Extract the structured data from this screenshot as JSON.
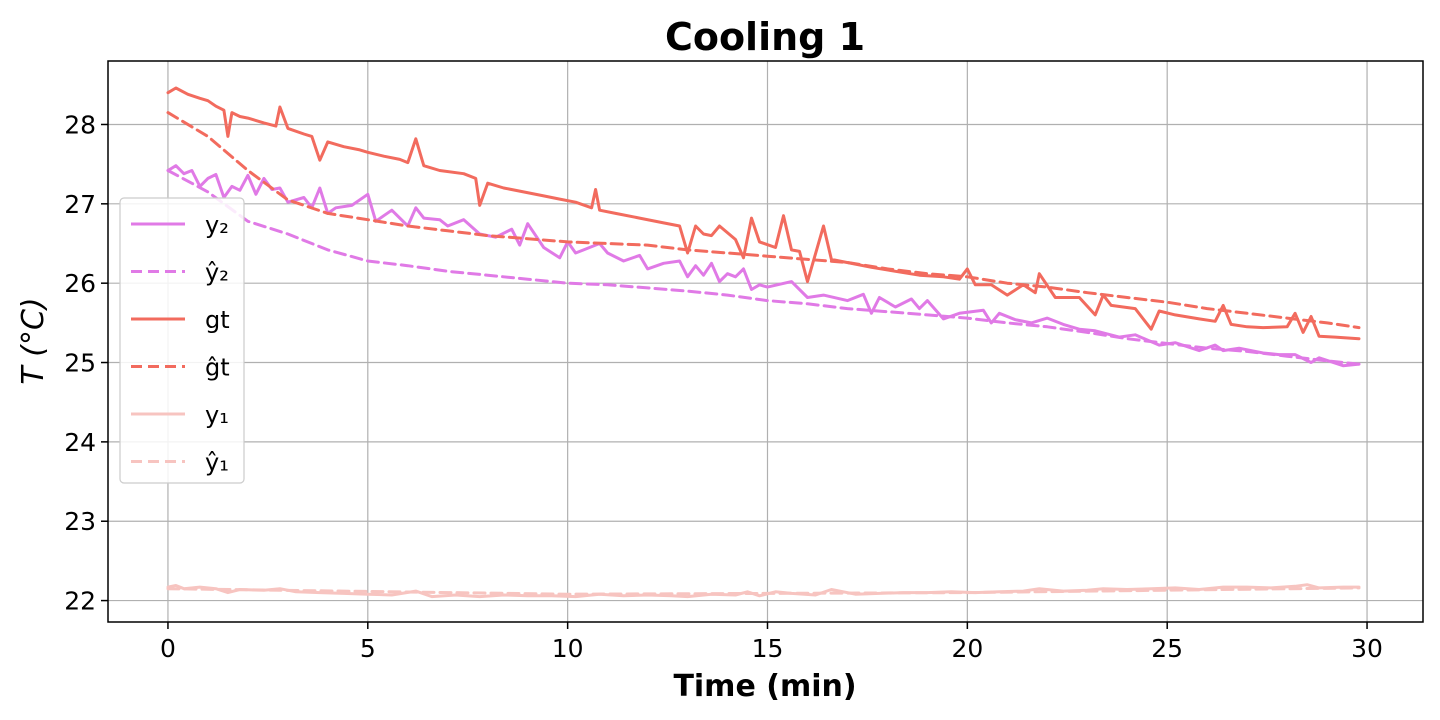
{
  "chart_data": {
    "type": "line",
    "title": "Cooling 1",
    "xlabel": "Time (min)",
    "ylabel": "T (°C)",
    "xlim": [
      -1.5,
      31.4
    ],
    "ylim": [
      21.73,
      28.8
    ],
    "x_ticks": [
      0,
      5,
      10,
      15,
      20,
      25,
      30
    ],
    "y_ticks": [
      22,
      23,
      24,
      25,
      26,
      27,
      28
    ],
    "grid": true,
    "legend_position": "center-left",
    "series": [
      {
        "name": "y₂",
        "color": "#e07ae6",
        "dash": false,
        "x": [
          0,
          0.2,
          0.4,
          0.6,
          0.8,
          1.0,
          1.2,
          1.4,
          1.6,
          1.8,
          2.0,
          2.2,
          2.4,
          2.6,
          2.8,
          3.0,
          3.4,
          3.6,
          3.8,
          4.0,
          4.2,
          4.6,
          5.0,
          5.2,
          5.4,
          5.6,
          6.0,
          6.2,
          6.4,
          6.8,
          7.0,
          7.4,
          7.8,
          8.2,
          8.6,
          8.8,
          9.0,
          9.2,
          9.4,
          9.8,
          10.0,
          10.2,
          10.4,
          10.8,
          11.0,
          11.4,
          11.8,
          12.0,
          12.4,
          12.8,
          13.0,
          13.2,
          13.4,
          13.6,
          13.8,
          14.0,
          14.2,
          14.4,
          14.6,
          14.8,
          15.0,
          15.6,
          16.0,
          16.4,
          17.0,
          17.4,
          17.6,
          17.8,
          18.2,
          18.6,
          18.8,
          19.0,
          19.4,
          19.8,
          20.4,
          20.6,
          20.8,
          21.2,
          21.6,
          22.0,
          22.4,
          22.8,
          23.2,
          23.8,
          24.2,
          24.8,
          25.2,
          25.8,
          26.2,
          26.4,
          26.8,
          27.4,
          27.8,
          28.2,
          28.6,
          28.8,
          29.4,
          29.8
        ],
        "y": [
          27.42,
          27.48,
          27.38,
          27.42,
          27.22,
          27.32,
          27.37,
          27.08,
          27.22,
          27.17,
          27.36,
          27.12,
          27.32,
          27.18,
          27.2,
          27.02,
          27.08,
          26.95,
          27.2,
          26.88,
          26.95,
          26.98,
          27.12,
          26.78,
          26.85,
          26.92,
          26.72,
          26.95,
          26.82,
          26.8,
          26.72,
          26.8,
          26.62,
          26.58,
          26.68,
          26.48,
          26.75,
          26.6,
          26.45,
          26.32,
          26.52,
          26.38,
          26.42,
          26.5,
          26.38,
          26.28,
          26.35,
          26.18,
          26.25,
          26.28,
          26.08,
          26.22,
          26.1,
          26.25,
          26.02,
          26.12,
          26.08,
          26.18,
          25.92,
          25.98,
          25.95,
          26.02,
          25.82,
          25.85,
          25.78,
          25.86,
          25.62,
          25.82,
          25.7,
          25.8,
          25.68,
          25.78,
          25.55,
          25.62,
          25.66,
          25.5,
          25.62,
          25.54,
          25.5,
          25.56,
          25.48,
          25.42,
          25.4,
          25.32,
          25.35,
          25.22,
          25.25,
          25.15,
          25.22,
          25.15,
          25.18,
          25.12,
          25.1,
          25.1,
          25.0,
          25.06,
          24.96,
          24.98
        ]
      },
      {
        "name": "ŷ₂",
        "color": "#e07ae6",
        "dash": true,
        "x": [
          0,
          1,
          2,
          3,
          4,
          5,
          6,
          7,
          8,
          9,
          10,
          11,
          12,
          13,
          14,
          15,
          16,
          17,
          18,
          19,
          20,
          21,
          22,
          23,
          24,
          25,
          26,
          27,
          28,
          29,
          29.8
        ],
        "y": [
          27.42,
          27.15,
          26.78,
          26.62,
          26.42,
          26.28,
          26.22,
          26.15,
          26.1,
          26.05,
          26.0,
          25.98,
          25.94,
          25.9,
          25.85,
          25.78,
          25.74,
          25.68,
          25.64,
          25.6,
          25.56,
          25.5,
          25.45,
          25.38,
          25.3,
          25.24,
          25.18,
          25.14,
          25.08,
          25.02,
          24.98
        ]
      },
      {
        "name": "gt",
        "color": "#f26b5e",
        "dash": false,
        "x": [
          0,
          0.2,
          0.5,
          0.8,
          1.0,
          1.2,
          1.4,
          1.5,
          1.6,
          1.8,
          2.0,
          2.4,
          2.7,
          2.8,
          3.0,
          3.4,
          3.6,
          3.8,
          4.0,
          4.4,
          4.8,
          5.0,
          5.4,
          5.8,
          6.0,
          6.2,
          6.4,
          6.8,
          7.4,
          7.7,
          7.8,
          8.0,
          8.4,
          8.8,
          9.4,
          9.8,
          10.2,
          10.6,
          10.7,
          10.8,
          11.2,
          11.8,
          12.4,
          12.8,
          13.0,
          13.2,
          13.4,
          13.6,
          13.8,
          14.2,
          14.4,
          14.6,
          14.8,
          15.2,
          15.4,
          15.6,
          15.8,
          16.0,
          16.4,
          16.6,
          16.8,
          17.2,
          17.6,
          18.2,
          18.8,
          19.4,
          19.8,
          20.0,
          20.2,
          20.6,
          21.0,
          21.4,
          21.7,
          21.8,
          22.2,
          22.8,
          23.2,
          23.4,
          23.6,
          24.2,
          24.6,
          24.8,
          25.2,
          25.8,
          26.2,
          26.4,
          26.6,
          27.0,
          27.4,
          28.0,
          28.2,
          28.4,
          28.6,
          28.8,
          29.2,
          29.8
        ],
        "y": [
          28.4,
          28.46,
          28.38,
          28.33,
          28.3,
          28.23,
          28.18,
          27.85,
          28.15,
          28.1,
          28.08,
          28.02,
          27.98,
          28.22,
          27.95,
          27.88,
          27.85,
          27.55,
          27.78,
          27.72,
          27.68,
          27.65,
          27.6,
          27.56,
          27.52,
          27.82,
          27.48,
          27.42,
          27.38,
          27.32,
          26.98,
          27.26,
          27.2,
          27.16,
          27.1,
          27.06,
          27.02,
          26.95,
          27.18,
          26.92,
          26.88,
          26.82,
          26.76,
          26.72,
          26.38,
          26.72,
          26.62,
          26.6,
          26.72,
          26.55,
          26.32,
          26.82,
          26.52,
          26.45,
          26.85,
          26.42,
          26.4,
          26.02,
          26.72,
          26.3,
          26.28,
          26.24,
          26.2,
          26.15,
          26.1,
          26.08,
          26.05,
          26.18,
          25.98,
          25.98,
          25.85,
          25.98,
          25.88,
          26.12,
          25.82,
          25.82,
          25.6,
          25.85,
          25.72,
          25.68,
          25.42,
          25.65,
          25.6,
          25.55,
          25.52,
          25.72,
          25.48,
          25.45,
          25.44,
          25.45,
          25.62,
          25.38,
          25.58,
          25.33,
          25.32,
          25.3
        ]
      },
      {
        "name": "ĝt",
        "color": "#f26b5e",
        "dash": true,
        "x": [
          0,
          1,
          2,
          3,
          4,
          5,
          6,
          7,
          8,
          9,
          10,
          11,
          12,
          13,
          14,
          15,
          16,
          17,
          18,
          19,
          20,
          21,
          22,
          23,
          24,
          25,
          26,
          27,
          28,
          29,
          29.8
        ],
        "y": [
          28.15,
          27.85,
          27.42,
          27.05,
          26.88,
          26.8,
          26.72,
          26.66,
          26.6,
          26.56,
          26.52,
          26.5,
          26.48,
          26.42,
          26.38,
          26.34,
          26.3,
          26.26,
          26.18,
          26.12,
          26.08,
          26.0,
          25.95,
          25.88,
          25.82,
          25.76,
          25.68,
          25.62,
          25.56,
          25.5,
          25.44
        ]
      },
      {
        "name": "y₁",
        "color": "#f7c4c0",
        "dash": false,
        "x": [
          0,
          0.2,
          0.4,
          0.8,
          1.2,
          1.5,
          1.8,
          2.4,
          2.8,
          3.2,
          3.8,
          4.4,
          5.0,
          5.6,
          6.2,
          6.6,
          7.2,
          7.8,
          8.4,
          9.0,
          9.6,
          10.2,
          10.8,
          11.4,
          12.0,
          12.6,
          13.0,
          13.6,
          14.2,
          14.5,
          14.8,
          15.2,
          15.6,
          16.2,
          16.6,
          17.2,
          17.8,
          18.4,
          19.0,
          19.6,
          20.2,
          20.8,
          21.4,
          21.8,
          22.4,
          23.0,
          23.4,
          24.0,
          24.6,
          25.2,
          25.8,
          26.4,
          27.0,
          27.6,
          28.2,
          28.5,
          28.8,
          29.4,
          29.8
        ],
        "y": [
          22.17,
          22.19,
          22.15,
          22.17,
          22.15,
          22.1,
          22.14,
          22.13,
          22.15,
          22.11,
          22.1,
          22.09,
          22.08,
          22.07,
          22.12,
          22.05,
          22.07,
          22.05,
          22.07,
          22.06,
          22.06,
          22.05,
          22.08,
          22.06,
          22.07,
          22.06,
          22.05,
          22.08,
          22.07,
          22.11,
          22.06,
          22.11,
          22.09,
          22.07,
          22.14,
          22.08,
          22.09,
          22.1,
          22.1,
          22.11,
          22.1,
          22.11,
          22.12,
          22.15,
          22.12,
          22.13,
          22.15,
          22.14,
          22.15,
          22.16,
          22.14,
          22.17,
          22.17,
          22.16,
          22.18,
          22.2,
          22.16,
          22.17,
          22.17
        ]
      },
      {
        "name": "ŷ₁",
        "color": "#f7c4c0",
        "dash": true,
        "x": [
          0,
          10,
          20,
          29.8
        ],
        "y": [
          22.15,
          22.08,
          22.1,
          22.16
        ]
      }
    ]
  }
}
